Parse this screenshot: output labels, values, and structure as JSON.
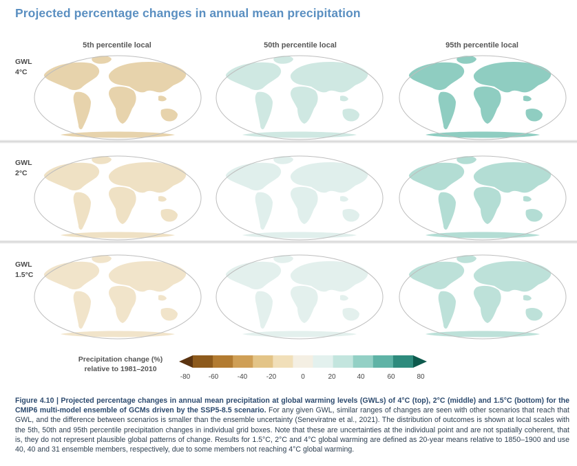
{
  "title": "Projected percentage changes in annual mean precipitation",
  "columns": [
    "5th percentile local",
    "50th percentile local",
    "95th percentile local"
  ],
  "rows": [
    {
      "line1": "GWL",
      "line2": "4°C"
    },
    {
      "line1": "GWL",
      "line2": "2°C"
    },
    {
      "line1": "GWL",
      "line2": "1.5°C"
    }
  ],
  "legend": {
    "title_line1": "Precipitation change (%)",
    "title_line2": "relative to 1981–2010",
    "ticks": [
      "-80",
      "-60",
      "-40",
      "-20",
      "0",
      "20",
      "40",
      "60",
      "80"
    ],
    "colors": [
      "#5b3411",
      "#8d5a1c",
      "#b27b31",
      "#cf9f56",
      "#e3c487",
      "#f1dfb9",
      "#f4efe3",
      "#e3f1ee",
      "#c3e5de",
      "#93d0c5",
      "#5fb3a6",
      "#2e8b7d",
      "#0e5a4d"
    ]
  },
  "caption": {
    "label": "Figure 4.10 |",
    "bold_text": "Projected percentage changes in annual mean precipitation at global warming levels (GWLs) of 4°C (top), 2°C (middle) and 1.5°C (bottom) for the CMIP6 multi-model ensemble of GCMs driven by the SSP5-8.5 scenario.",
    "body": "For any given GWL, similar ranges of changes are seen with other scenarios that reach that GWL, and the difference between scenarios is smaller than the ensemble uncertainty (Seneviratne et al., 2021). The distribution of outcomes is shown at local scales with the 5th, 50th and 95th percentile precipitation changes in individual grid boxes. Note that these are uncertainties at the individual point and are not spatially coherent, that is, they do not represent plausible global patterns of change. Results for 1.5°C, 2°C and 4°C global warming are defined as 20-year means relative to 1850–1900 and use 40, 40 and 31 ensemble members, respectively, due to some members not reaching 4°C global warming."
  }
}
